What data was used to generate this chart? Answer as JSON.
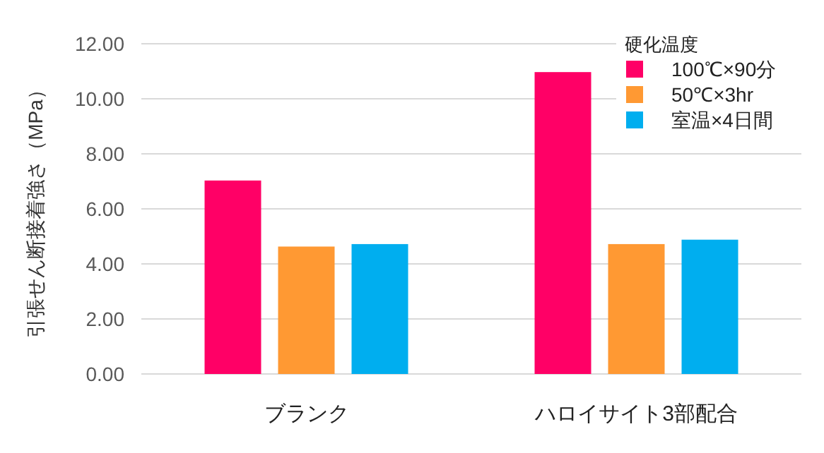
{
  "chart_data": {
    "type": "bar",
    "ylabel": "引張せん断接着強さ（MPa）",
    "legend_title": "硬化温度",
    "categories": [
      "ブランク",
      "ハロイサイト3部配合"
    ],
    "series": [
      {
        "name": "100℃×90分",
        "color": "#ff0066",
        "values": [
          7.03,
          10.97
        ]
      },
      {
        "name": "50℃×3hr",
        "color": "#ff9933",
        "values": [
          4.63,
          4.72
        ]
      },
      {
        "name": "室温×4日間",
        "color": "#00aeef",
        "values": [
          4.72,
          4.88
        ]
      }
    ],
    "ylim": [
      0,
      12
    ],
    "yticks": [
      {
        "value": 0,
        "label": "0.00"
      },
      {
        "value": 2,
        "label": "2.00"
      },
      {
        "value": 4,
        "label": "4.00"
      },
      {
        "value": 6,
        "label": "6.00"
      },
      {
        "value": 8,
        "label": "8.00"
      },
      {
        "value": 10,
        "label": "10.00"
      },
      {
        "value": 12,
        "label": "12.00"
      }
    ],
    "grid": "y",
    "legend": "top right"
  }
}
